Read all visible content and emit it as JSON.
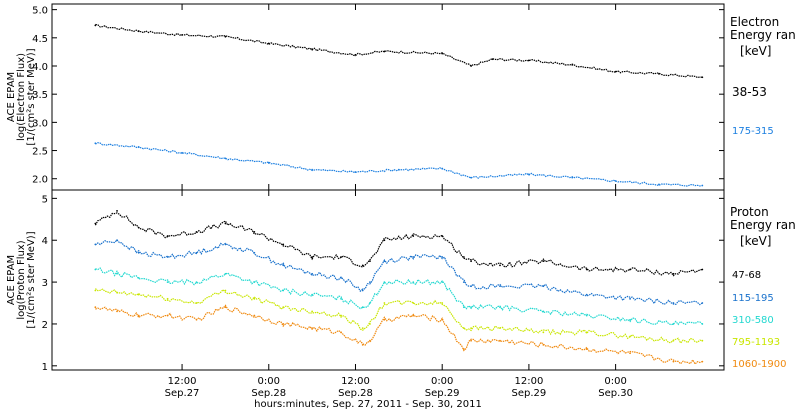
{
  "chart_data": [
    {
      "type": "line",
      "ylabel": [
        "ACE EPAM",
        "log(Electron Flux)",
        "[1/(cm²s ster MeV)]"
      ],
      "ylim": [
        1.8,
        5.1
      ],
      "yticks": [
        "5.0",
        "4.5",
        "4.0",
        "3.5",
        "3.0",
        "2.5",
        "2.0"
      ],
      "ytick_values": [
        5.0,
        4.5,
        4.0,
        3.5,
        3.0,
        2.5,
        2.0
      ],
      "legend_title": [
        "Electron",
        "Energy ran",
        "[keV]"
      ],
      "x_range_hours": [
        -6,
        87
      ],
      "series": [
        {
          "name": "38-53",
          "color": "#000000",
          "x": [
            0,
            6,
            12,
            18,
            24,
            30,
            36,
            40,
            48,
            52,
            55,
            60,
            66,
            72,
            78,
            84
          ],
          "values": [
            4.72,
            4.62,
            4.55,
            4.52,
            4.4,
            4.3,
            4.2,
            4.26,
            4.22,
            4.0,
            4.12,
            4.1,
            4.02,
            3.9,
            3.86,
            3.8
          ]
        },
        {
          "name": "175-315",
          "color": "#1c7fe0",
          "x": [
            0,
            6,
            12,
            18,
            24,
            30,
            36,
            42,
            48,
            52,
            60,
            66,
            72,
            78,
            84
          ],
          "values": [
            2.63,
            2.56,
            2.46,
            2.36,
            2.28,
            2.16,
            2.12,
            2.16,
            2.18,
            2.02,
            2.08,
            2.02,
            1.96,
            1.9,
            1.88
          ]
        }
      ]
    },
    {
      "type": "line",
      "ylabel": [
        "ACE EPAM",
        "log(Proton Flux)",
        "[1/(cm²s ster MeV)]"
      ],
      "ylim": [
        0.9,
        5.2
      ],
      "yticks": [
        "5",
        "4",
        "3",
        "2",
        "1"
      ],
      "ytick_values": [
        5,
        4,
        3,
        2,
        1
      ],
      "legend_title": [
        "Proton",
        "Energy ran",
        "[keV]"
      ],
      "x_range_hours": [
        -6,
        87
      ],
      "xticks": [
        {
          "hour": 12,
          "label": [
            "12:00",
            "Sep.27"
          ]
        },
        {
          "hour": 24,
          "label": [
            "0:00",
            "Sep.28"
          ]
        },
        {
          "hour": 36,
          "label": [
            "12:00",
            "Sep.28"
          ]
        },
        {
          "hour": 48,
          "label": [
            "0:00",
            "Sep.29"
          ]
        },
        {
          "hour": 60,
          "label": [
            "12:00",
            "Sep.29"
          ]
        },
        {
          "hour": 72,
          "label": [
            "0:00",
            "Sep.30"
          ]
        }
      ],
      "xlabel": "hours:minutes, Sep. 27, 2011 - Sep. 30, 2011",
      "series": [
        {
          "name": "47-68",
          "color": "#000000",
          "x": [
            0,
            3,
            6,
            10,
            14,
            18,
            22,
            26,
            30,
            34,
            37,
            38,
            40,
            44,
            48,
            51,
            52,
            56,
            62,
            68,
            74,
            80,
            84
          ],
          "values": [
            4.4,
            4.7,
            4.3,
            4.1,
            4.2,
            4.4,
            4.2,
            3.9,
            3.6,
            3.6,
            3.4,
            3.5,
            4.0,
            4.1,
            4.1,
            3.6,
            3.5,
            3.4,
            3.5,
            3.3,
            3.3,
            3.2,
            3.3
          ]
        },
        {
          "name": "115-195",
          "color": "#1a72cc",
          "x": [
            0,
            3,
            6,
            10,
            14,
            18,
            22,
            26,
            30,
            34,
            37,
            38,
            40,
            44,
            48,
            51,
            52,
            56,
            62,
            68,
            74,
            80,
            84
          ],
          "values": [
            3.9,
            4.0,
            3.7,
            3.6,
            3.7,
            3.9,
            3.7,
            3.4,
            3.2,
            3.1,
            2.8,
            3.0,
            3.5,
            3.6,
            3.6,
            3.0,
            2.9,
            2.9,
            2.9,
            2.7,
            2.6,
            2.5,
            2.5
          ]
        },
        {
          "name": "310-580",
          "color": "#22d8d0",
          "x": [
            0,
            3,
            6,
            10,
            14,
            18,
            22,
            26,
            30,
            34,
            37,
            38,
            40,
            44,
            48,
            51,
            52,
            56,
            62,
            68,
            74,
            80,
            84
          ],
          "values": [
            3.3,
            3.2,
            3.1,
            3.0,
            3.0,
            3.2,
            3.0,
            2.8,
            2.7,
            2.6,
            2.4,
            2.5,
            3.0,
            3.0,
            3.0,
            2.4,
            2.4,
            2.4,
            2.3,
            2.2,
            2.1,
            2.0,
            2.0
          ]
        },
        {
          "name": "795-1193",
          "color": "#c9e600",
          "x": [
            0,
            3,
            6,
            10,
            14,
            18,
            22,
            26,
            30,
            34,
            37,
            38,
            40,
            44,
            48,
            51,
            52,
            56,
            62,
            68,
            74,
            80,
            84
          ],
          "values": [
            2.8,
            2.75,
            2.7,
            2.6,
            2.5,
            2.8,
            2.6,
            2.4,
            2.3,
            2.2,
            1.9,
            2.0,
            2.5,
            2.5,
            2.5,
            1.9,
            1.9,
            1.9,
            1.8,
            1.8,
            1.7,
            1.6,
            1.6
          ]
        },
        {
          "name": "1060-1900",
          "color": "#f08a10",
          "x": [
            0,
            3,
            6,
            10,
            14,
            18,
            22,
            26,
            30,
            34,
            37,
            38,
            40,
            44,
            48,
            51,
            52,
            56,
            62,
            68,
            74,
            80,
            84
          ],
          "values": [
            2.4,
            2.3,
            2.2,
            2.2,
            2.1,
            2.4,
            2.2,
            2.0,
            1.9,
            1.8,
            1.5,
            1.6,
            2.1,
            2.2,
            2.1,
            1.4,
            1.6,
            1.6,
            1.5,
            1.4,
            1.3,
            1.1,
            1.1
          ]
        }
      ]
    }
  ]
}
